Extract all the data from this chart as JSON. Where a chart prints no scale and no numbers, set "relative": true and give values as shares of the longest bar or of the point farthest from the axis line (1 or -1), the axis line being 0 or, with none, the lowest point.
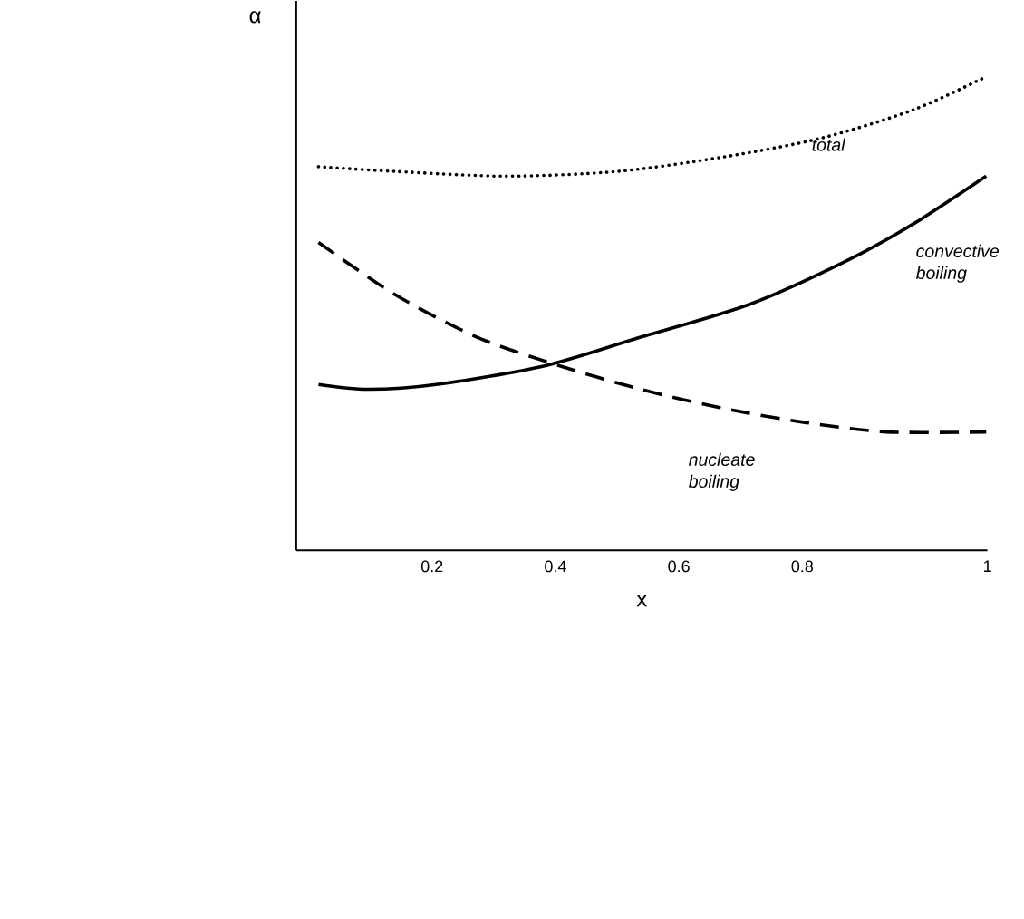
{
  "chart_data": {
    "type": "line",
    "relative": true,
    "xlabel": "x",
    "ylabel": "α",
    "xlim": [
      -0.02,
      1.1
    ],
    "xticks": [
      0.2,
      0.4,
      0.6,
      0.8,
      {
        "value": 1.1,
        "label": "1"
      }
    ],
    "grid": false,
    "legend": false,
    "marker": "none",
    "series": [
      {
        "name": "total",
        "color": "#000000",
        "line_style": "dotted",
        "x": [
          0.016,
          0.14,
          0.32,
          0.5,
          0.67,
          0.83,
          0.98,
          1.098
        ],
        "values": [
          0.81,
          0.8,
          0.79,
          0.8,
          0.83,
          0.87,
          0.93,
          1.0
        ]
      },
      {
        "name": "convective boiling",
        "color": "#000000",
        "line_style": "solid",
        "x": [
          0.016,
          0.096,
          0.207,
          0.384,
          0.538,
          0.716,
          0.87,
          0.981,
          1.098
        ],
        "values": [
          0.35,
          0.34,
          0.35,
          0.39,
          0.45,
          0.52,
          0.61,
          0.69,
          0.79
        ]
      },
      {
        "name": "nucleate boiling",
        "color": "#000000",
        "line_style": "dashed",
        "x": [
          0.016,
          0.14,
          0.273,
          0.406,
          0.538,
          0.671,
          0.804,
          0.937,
          1.098
        ],
        "values": [
          0.65,
          0.54,
          0.45,
          0.39,
          0.34,
          0.3,
          0.27,
          0.25,
          0.25
        ]
      }
    ]
  }
}
